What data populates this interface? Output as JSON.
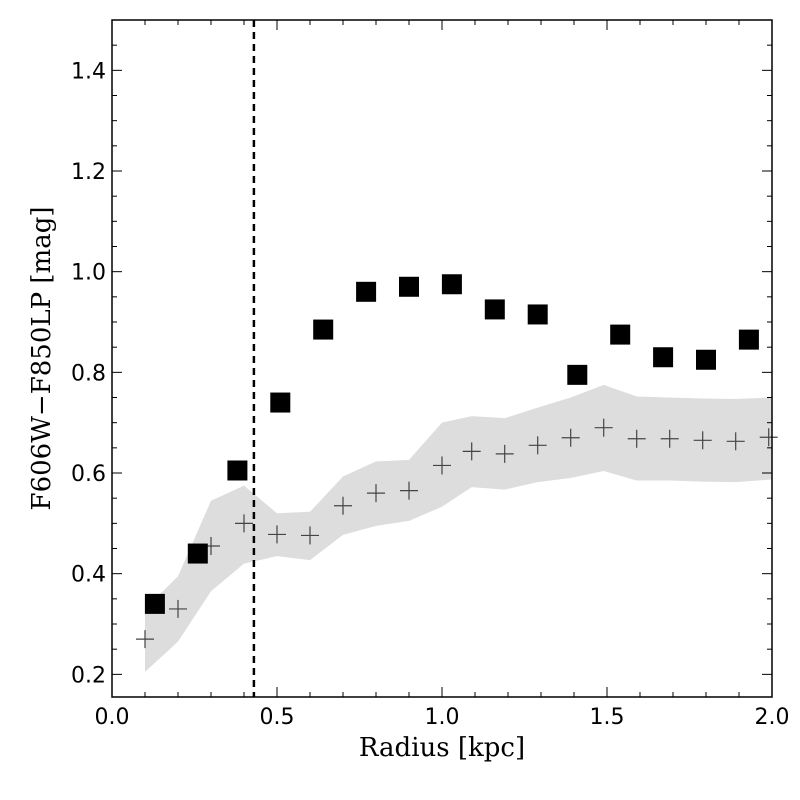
{
  "chart_data": {
    "type": "scatter",
    "title": "",
    "xlabel": "Radius [kpc]",
    "ylabel": "F606W−F850LP [mag]",
    "xlim": [
      0.0,
      2.0
    ],
    "ylim": [
      0.155,
      1.5
    ],
    "x_ticks": [
      0.0,
      0.5,
      1.0,
      1.5,
      2.0
    ],
    "x_tick_labels": [
      "0.0",
      "0.5",
      "1.0",
      "1.5",
      "2.0"
    ],
    "y_ticks": [
      0.2,
      0.4,
      0.6,
      0.8,
      1.0,
      1.2,
      1.4
    ],
    "y_tick_labels": [
      "0.2",
      "0.4",
      "0.6",
      "0.8",
      "1.0",
      "1.2",
      "1.4"
    ],
    "vline": {
      "x": 0.43,
      "style": "dashed"
    },
    "series": [
      {
        "name": "squares",
        "marker": "square",
        "color": "#000000",
        "points": [
          {
            "x": 0.13,
            "y": 0.34
          },
          {
            "x": 0.26,
            "y": 0.44
          },
          {
            "x": 0.38,
            "y": 0.605
          },
          {
            "x": 0.51,
            "y": 0.74
          },
          {
            "x": 0.64,
            "y": 0.885
          },
          {
            "x": 0.77,
            "y": 0.96
          },
          {
            "x": 0.9,
            "y": 0.97
          },
          {
            "x": 1.03,
            "y": 0.975
          },
          {
            "x": 1.16,
            "y": 0.925
          },
          {
            "x": 1.29,
            "y": 0.915
          },
          {
            "x": 1.41,
            "y": 0.795
          },
          {
            "x": 1.54,
            "y": 0.875
          },
          {
            "x": 1.67,
            "y": 0.83
          },
          {
            "x": 1.8,
            "y": 0.825
          },
          {
            "x": 1.93,
            "y": 0.865
          }
        ]
      },
      {
        "name": "plus",
        "marker": "plus",
        "color": "#444444",
        "points": [
          {
            "x": 0.1,
            "y": 0.27
          },
          {
            "x": 0.2,
            "y": 0.33
          },
          {
            "x": 0.3,
            "y": 0.455
          },
          {
            "x": 0.4,
            "y": 0.5
          },
          {
            "x": 0.5,
            "y": 0.478
          },
          {
            "x": 0.6,
            "y": 0.476
          },
          {
            "x": 0.7,
            "y": 0.535
          },
          {
            "x": 0.8,
            "y": 0.56
          },
          {
            "x": 0.9,
            "y": 0.565
          },
          {
            "x": 1.0,
            "y": 0.615
          },
          {
            "x": 1.09,
            "y": 0.643
          },
          {
            "x": 1.19,
            "y": 0.638
          },
          {
            "x": 1.29,
            "y": 0.655
          },
          {
            "x": 1.39,
            "y": 0.67
          },
          {
            "x": 1.49,
            "y": 0.69
          },
          {
            "x": 1.59,
            "y": 0.668
          },
          {
            "x": 1.69,
            "y": 0.668
          },
          {
            "x": 1.79,
            "y": 0.665
          },
          {
            "x": 1.89,
            "y": 0.663
          },
          {
            "x": 1.99,
            "y": 0.671
          }
        ]
      }
    ],
    "band": {
      "name": "shaded-range",
      "color": "#dddddd",
      "x": [
        0.1,
        0.2,
        0.3,
        0.4,
        0.5,
        0.6,
        0.7,
        0.8,
        0.9,
        1.0,
        1.09,
        1.19,
        1.29,
        1.39,
        1.49,
        1.59,
        1.69,
        1.79,
        1.89,
        2.0
      ],
      "upper": [
        0.33,
        0.395,
        0.545,
        0.575,
        0.52,
        0.523,
        0.593,
        0.623,
        0.626,
        0.7,
        0.713,
        0.709,
        0.73,
        0.75,
        0.775,
        0.752,
        0.75,
        0.748,
        0.747,
        0.75
      ],
      "lower": [
        0.205,
        0.265,
        0.365,
        0.42,
        0.435,
        0.427,
        0.477,
        0.495,
        0.505,
        0.533,
        0.572,
        0.567,
        0.582,
        0.59,
        0.604,
        0.585,
        0.585,
        0.583,
        0.582,
        0.587
      ]
    }
  }
}
